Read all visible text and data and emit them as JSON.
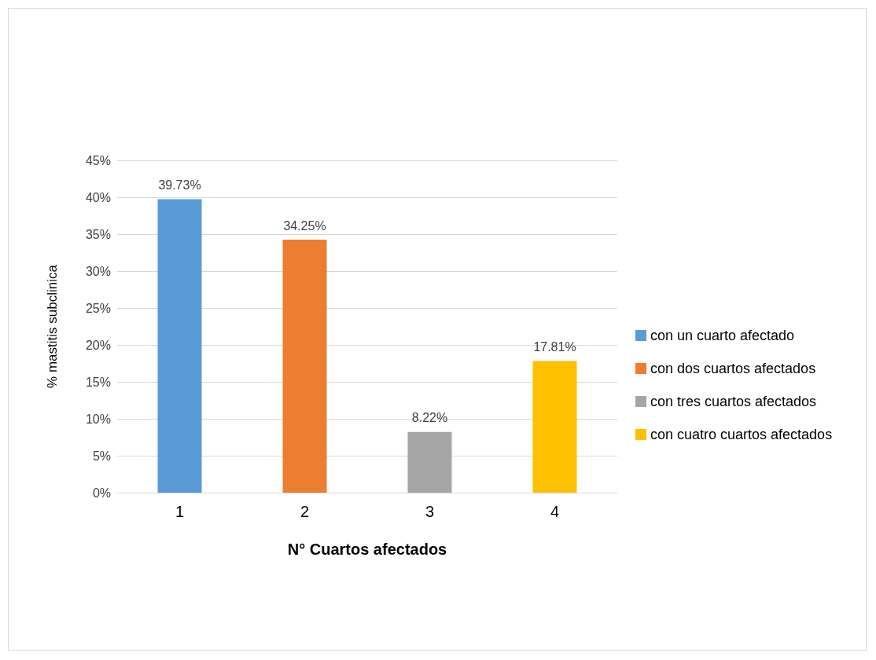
{
  "chart_data": {
    "type": "bar",
    "xlabel": "N° Cuartos afectados",
    "ylabel": "% mastitis subclinica",
    "categories": [
      "1",
      "2",
      "3",
      "4"
    ],
    "series": [
      {
        "name": "con un cuarto afectado",
        "color": "#5b9bd5",
        "values": [
          39.73,
          null,
          null,
          null
        ],
        "value_labels": [
          "39.73%",
          null,
          null,
          null
        ]
      },
      {
        "name": "con dos cuartos afectados",
        "color": "#ed7d31",
        "values": [
          null,
          34.25,
          null,
          null
        ],
        "value_labels": [
          null,
          "34.25%",
          null,
          null
        ]
      },
      {
        "name": "con tres cuartos afectados",
        "color": "#a5a5a5",
        "values": [
          null,
          null,
          8.22,
          null
        ],
        "value_labels": [
          null,
          null,
          "8.22%",
          null
        ]
      },
      {
        "name": "con cuatro cuartos afectados",
        "color": "#ffc000",
        "values": [
          null,
          null,
          null,
          17.81
        ],
        "value_labels": [
          null,
          null,
          null,
          "17.81%"
        ]
      }
    ],
    "ylim": [
      0,
      45
    ],
    "yticks": [
      {
        "value": 0,
        "label": "0%"
      },
      {
        "value": 5,
        "label": "5%"
      },
      {
        "value": 10,
        "label": "10%"
      },
      {
        "value": 15,
        "label": "15%"
      },
      {
        "value": 20,
        "label": "20%"
      },
      {
        "value": 25,
        "label": "25%"
      },
      {
        "value": 30,
        "label": "30%"
      },
      {
        "value": 35,
        "label": "35%"
      },
      {
        "value": 40,
        "label": "40%"
      },
      {
        "value": 45,
        "label": "45%"
      }
    ],
    "grid": "y",
    "legend": "right"
  }
}
